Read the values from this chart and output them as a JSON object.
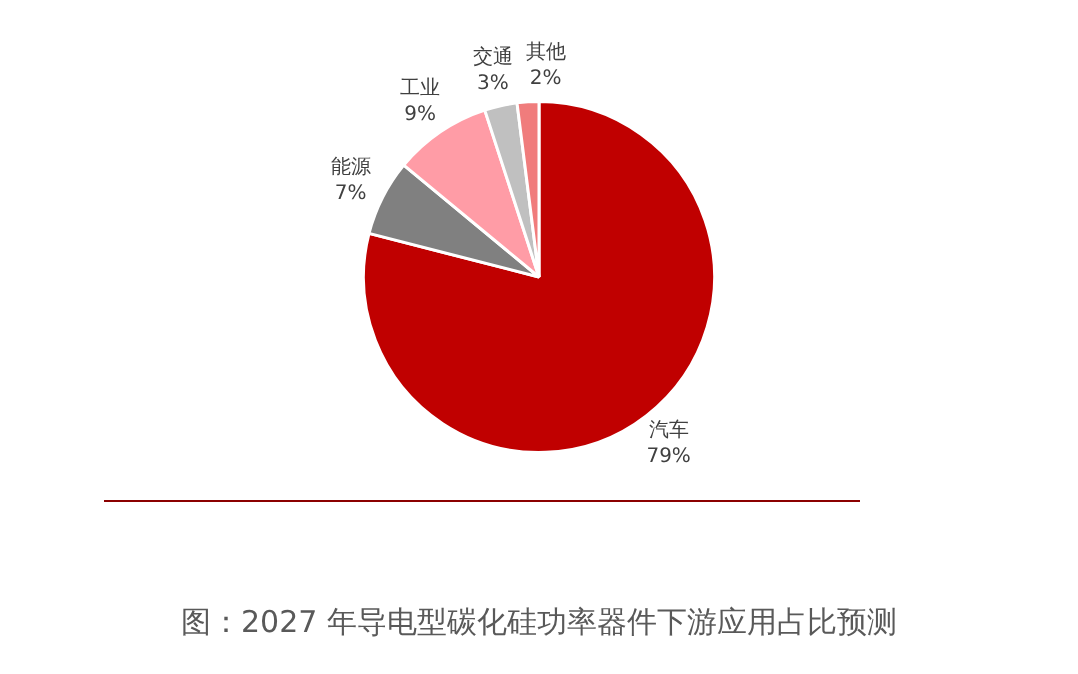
{
  "chart_data": {
    "type": "pie",
    "title": "图：2027 年导电型碳化硅功率器件下游应用占比预测",
    "categories": [
      "汽车",
      "能源",
      "工业",
      "交通",
      "其他"
    ],
    "values": [
      79,
      7,
      9,
      3,
      2
    ],
    "colors": [
      "#c00000",
      "#808080",
      "#ff9ca6",
      "#c0c0c0",
      "#f07c7c"
    ],
    "value_labels": [
      "79%",
      "7%",
      "9%",
      "3%",
      "2%"
    ],
    "legend": false
  }
}
